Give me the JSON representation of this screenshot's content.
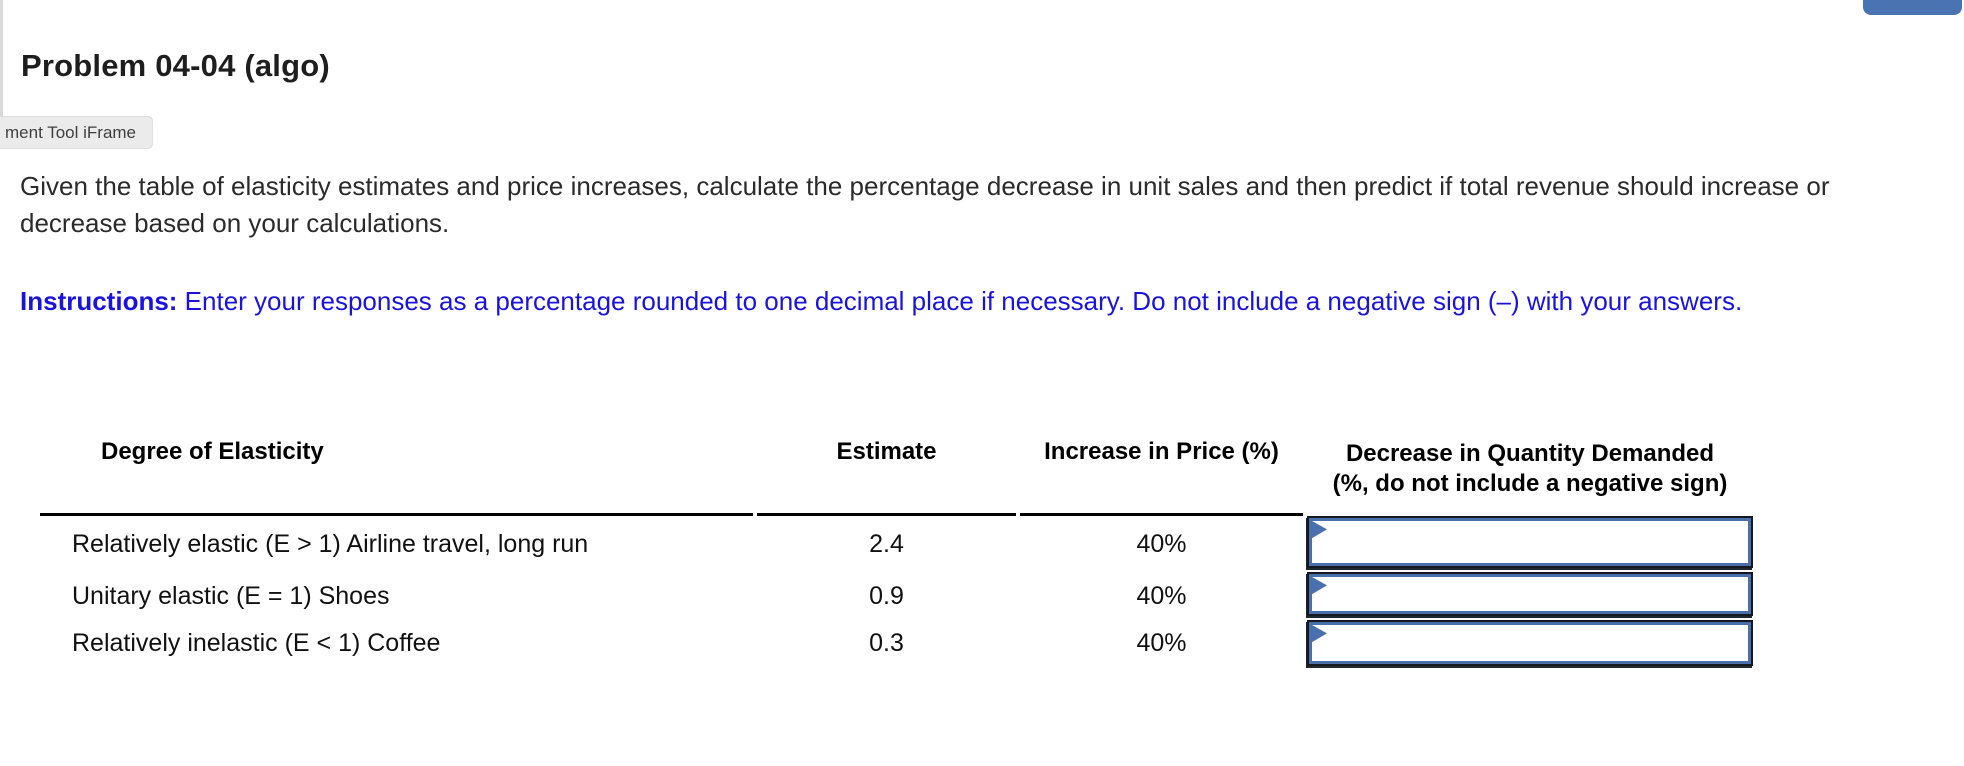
{
  "page": {
    "title": "Problem 04-04 (algo)",
    "iframe_label": "ment Tool iFrame"
  },
  "header_button": {
    "label": ""
  },
  "problem": {
    "body": "Given the table of elasticity estimates and price increases, calculate the percentage decrease in unit sales and then predict if total revenue should increase or decrease based on your calculations.",
    "instructions_label": "Instructions:",
    "instructions_rest": " Enter your responses as a percentage rounded to one decimal place if necessary. Do not include a negative sign (–) with your answers."
  },
  "table": {
    "headers": {
      "degree": "Degree of Elasticity",
      "estimate": "Estimate",
      "price": "Increase in Price (%)",
      "decrease_line1": "Decrease in Quantity Demanded",
      "decrease_line2": "(%, do not include a negative sign)"
    },
    "rows": [
      {
        "label": "Relatively elastic (E > 1) Airline travel, long run",
        "estimate": "2.4",
        "price_increase": "40%",
        "answer": ""
      },
      {
        "label": "Unitary elastic (E = 1) Shoes",
        "estimate": "0.9",
        "price_increase": "40%",
        "answer": ""
      },
      {
        "label": "Relatively inelastic (E < 1) Coffee",
        "estimate": "0.3",
        "price_increase": "40%",
        "answer": ""
      }
    ]
  },
  "colors": {
    "accent_blue": "#4a73b1",
    "input_border_blue": "#4a6fad",
    "instruction_blue": "#1a13e0",
    "tooltip_gray": "#ebebeb"
  }
}
